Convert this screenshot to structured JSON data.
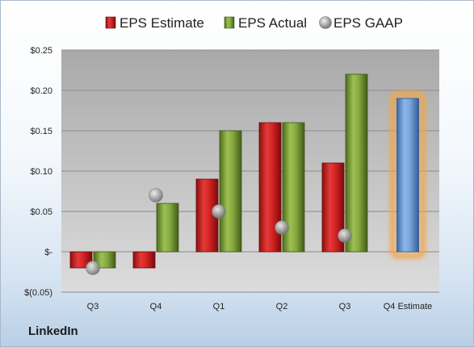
{
  "brand": "LinkedIn",
  "chart_data": {
    "type": "bar",
    "categories": [
      "Q3",
      "Q4",
      "Q1",
      "Q2",
      "Q3",
      "Q4 Estimate"
    ],
    "y_tick_labels": [
      "$(0.05)",
      "$-",
      "$0.05",
      "$0.10",
      "$0.15",
      "$0.20",
      "$0.25"
    ],
    "y_tick_values": [
      -0.05,
      0,
      0.05,
      0.1,
      0.15,
      0.2,
      0.25
    ],
    "ylim": [
      -0.05,
      0.25
    ],
    "grid": true,
    "legend_position": "top",
    "series": [
      {
        "name": "EPS Estimate",
        "color": "#cc1f1f",
        "values": [
          -0.02,
          -0.02,
          0.09,
          0.16,
          0.11,
          null
        ]
      },
      {
        "name": "EPS Actual",
        "color": "#7fa13a",
        "values": [
          -0.02,
          0.06,
          0.15,
          0.16,
          0.22,
          null
        ]
      },
      {
        "name": "EPS GAAP",
        "color": "#a8a8a8",
        "values": [
          -0.02,
          0.07,
          0.05,
          0.03,
          0.02,
          null
        ]
      }
    ],
    "estimate_bar": {
      "category_index": 5,
      "value": 0.19,
      "color": "#6f9fd8",
      "glow": "#f5a443"
    }
  }
}
